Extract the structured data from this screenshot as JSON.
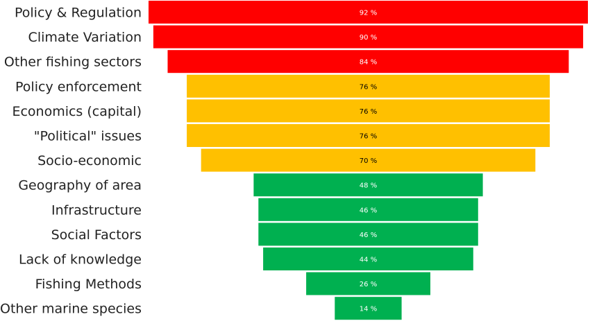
{
  "chart_data": {
    "type": "bar",
    "orientation": "horizontal-centered-funnel",
    "categories": [
      "Policy & Regulation",
      "Climate Variation",
      "Other fishing sectors",
      "Policy enforcement",
      "Economics  (capital)",
      "\"Political\" issues",
      "Socio-economic",
      "Geography of area",
      "Infrastructure",
      "Social Factors",
      "Lack of knowledge",
      "Fishing Methods",
      "Other marine species"
    ],
    "values": [
      92,
      90,
      84,
      76,
      76,
      76,
      70,
      48,
      46,
      46,
      44,
      26,
      14
    ],
    "unit": "%",
    "value_label_suffix": " %",
    "colors": [
      "#ff0000",
      "#ff0000",
      "#ff0000",
      "#ffc000",
      "#ffc000",
      "#ffc000",
      "#ffc000",
      "#00b050",
      "#00b050",
      "#00b050",
      "#00b050",
      "#00b050",
      "#00b050"
    ],
    "value_label_colors": [
      "#ffffff",
      "#ffffff",
      "#ffffff",
      "#000000",
      "#000000",
      "#000000",
      "#000000",
      "#ffffff",
      "#ffffff",
      "#ffffff",
      "#ffffff",
      "#ffffff",
      "#ffffff"
    ],
    "xlim": [
      0,
      100
    ],
    "grid": false,
    "legend": "none",
    "title": "",
    "xlabel": "",
    "ylabel": ""
  }
}
